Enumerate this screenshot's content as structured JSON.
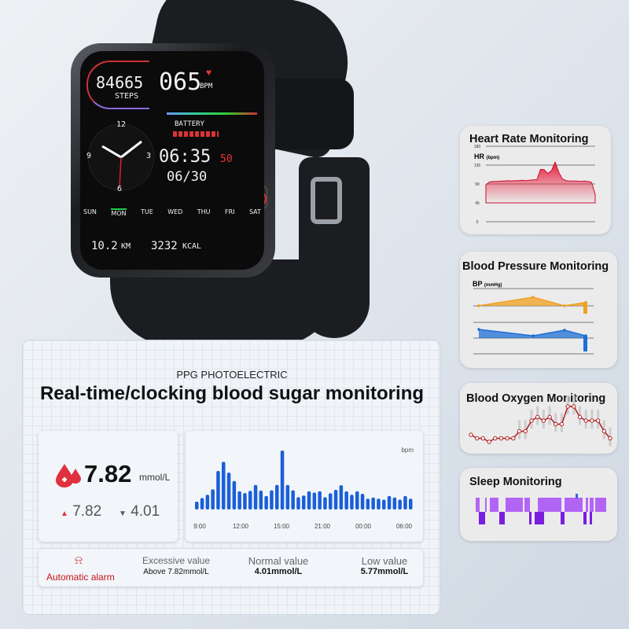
{
  "watch": {
    "steps": "84665",
    "steps_label": "STEPS",
    "heart_rate": "065",
    "bpm_label": "BPM",
    "battery_label": "BATTERY",
    "time": "06:35",
    "seconds": "50",
    "date": "06/30",
    "dial_numbers": [
      "12",
      "3",
      "6",
      "9"
    ],
    "weekdays": [
      "SUN",
      "MON",
      "TUE",
      "WED",
      "THU",
      "FRI",
      "SAT"
    ],
    "active_day": "MON",
    "distance": "10.2",
    "distance_unit": "KM",
    "calories": "3232",
    "calories_unit": "KCAL"
  },
  "features": {
    "heart_rate": {
      "title": "Heart Rate Monitoring",
      "axis_label": "HR",
      "axis_unit": "(bpm)"
    },
    "blood_pressure": {
      "title": "Blood Pressure Monitoring",
      "axis_label": "BP",
      "axis_unit": "(mmHg)"
    },
    "blood_oxygen": {
      "title": "Blood Oxygen Monitoring"
    },
    "sleep": {
      "title": "Sleep Monitoring"
    }
  },
  "main": {
    "subtitle": "PPG PHOTOELECTRIC",
    "title": "Real-time/clocking blood sugar monitoring",
    "reading": {
      "value": "7.82",
      "unit": "mmol/L",
      "high": "7.82",
      "low": "4.01"
    },
    "chart_unit": "bpm",
    "alarm": {
      "label": "Automatic alarm",
      "items": [
        {
          "title": "Excessive value",
          "value": "Above 7.82mmol/L"
        },
        {
          "title": "Normal value",
          "value": "4.01mmol/L"
        },
        {
          "title": "Low value",
          "value": "5.77mmol/L"
        }
      ]
    }
  },
  "colors": {
    "heart": "#e8213f",
    "bp_high": "#f0a020",
    "bp_low": "#1d6fd6",
    "spo2": "#b01c22",
    "sleep": "#a54cf0",
    "bars": "#1a5fd8",
    "alarm": "#c4141c"
  },
  "chart_data": [
    {
      "type": "bar",
      "unit": "bpm",
      "xticks": [
        "9:00",
        "12:00",
        "15:00",
        "21:00",
        "00:00",
        "06:00"
      ],
      "values": [
        32,
        47,
        60,
        82,
        157,
        194,
        150,
        116,
        74,
        67,
        76,
        100,
        77,
        55,
        78,
        100,
        240,
        100,
        78,
        50,
        57,
        74,
        69,
        74,
        50,
        66,
        80,
        99,
        74,
        60,
        74,
        64,
        44,
        49,
        44,
        40,
        55,
        49,
        40,
        55,
        44
      ]
    },
    {
      "type": "area",
      "title": "Heart Rate Monitoring",
      "ylabel": "HR (bpm)",
      "yticks": [
        0,
        45,
        90,
        135,
        180
      ],
      "ylim": [
        0,
        180
      ],
      "values": [
        88,
        95,
        96,
        96,
        97,
        97,
        98,
        97,
        98,
        98,
        99,
        98,
        99,
        100,
        100,
        125,
        124,
        115,
        122,
        142,
        118,
        102,
        98,
        97,
        97,
        97,
        96,
        97,
        96,
        94,
        65
      ]
    },
    {
      "type": "area",
      "title": "Blood Pressure Monitoring",
      "ylabel": "BP (mmHg)",
      "series": [
        {
          "values": [
            120,
            130,
            120,
            124
          ]
        },
        {
          "values": [
            85,
            76,
            84,
            76
          ]
        }
      ]
    },
    {
      "type": "line",
      "title": "Blood Oxygen Monitoring",
      "values": [
        90,
        89,
        89,
        88,
        89,
        89,
        89,
        89,
        91,
        91,
        94,
        95,
        94,
        95,
        93,
        93,
        98,
        98,
        95,
        94,
        94,
        94,
        91,
        89
      ]
    }
  ]
}
